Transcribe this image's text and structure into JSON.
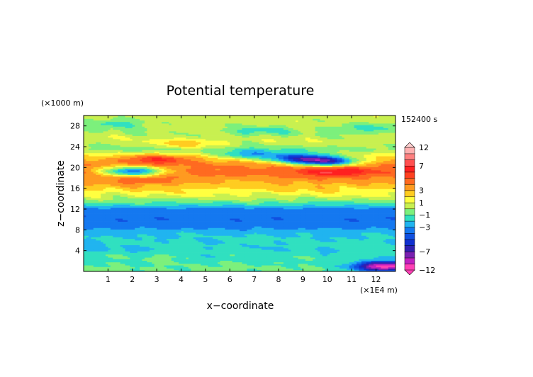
{
  "chart_data": {
    "type": "heatmap",
    "title": "Potential temperature",
    "xlabel": "x−coordinate",
    "ylabel": "z−coordinate",
    "x_unit": "(×1E4 m)",
    "y_unit": "(×1000 m)",
    "time_label": "152400 s",
    "xlim": [
      0,
      12.8
    ],
    "ylim": [
      0,
      30
    ],
    "x_ticks": [
      1,
      2,
      3,
      4,
      5,
      6,
      7,
      8,
      9,
      10,
      11,
      12
    ],
    "y_ticks": [
      4,
      8,
      12,
      16,
      20,
      24,
      28
    ],
    "colorbar": {
      "levels": [
        -12,
        -9,
        -8,
        -7,
        -6,
        -5,
        -4,
        -3,
        -2,
        -1,
        0,
        1,
        2,
        3,
        4,
        5,
        6,
        7,
        8,
        10,
        12
      ],
      "colors": [
        "#ff3fb5",
        "#c020c0",
        "#7a20b0",
        "#3020b0",
        "#1030d0",
        "#1050e0",
        "#1478f0",
        "#20b4f0",
        "#30e0c0",
        "#7cf07c",
        "#c8f050",
        "#ffff40",
        "#ffcc20",
        "#ff9a20",
        "#ff6a20",
        "#ff4020",
        "#ff2020",
        "#ff5050",
        "#ff8080",
        "#ffb0b0"
      ],
      "tick_labels": [
        "12",
        "7",
        "3",
        "1",
        "−1",
        "−3",
        "−7",
        "−12"
      ],
      "tick_values": [
        12,
        7,
        3,
        1,
        -1,
        -3,
        -7,
        -12
      ],
      "extend": "both"
    },
    "z_profile": [
      {
        "z": 0.5,
        "value": -0.8
      },
      {
        "z": 2,
        "value": -1.2
      },
      {
        "z": 4,
        "value": -1.7
      },
      {
        "z": 6,
        "value": -1.8
      },
      {
        "z": 7.5,
        "value": -2.2
      },
      {
        "z": 8.5,
        "value": -3.3
      },
      {
        "z": 10,
        "value": -3.8
      },
      {
        "z": 12,
        "value": -3.4
      },
      {
        "z": 13,
        "value": -1.4
      },
      {
        "z": 14.5,
        "value": 0.8
      },
      {
        "z": 16,
        "value": 2.2
      },
      {
        "z": 17.5,
        "value": 3.5
      },
      {
        "z": 19,
        "value": 4.5
      },
      {
        "z": 20.5,
        "value": 4.0
      },
      {
        "z": 22,
        "value": 2.5
      },
      {
        "z": 23.5,
        "value": -0.5
      },
      {
        "z": 25,
        "value": 0.6
      },
      {
        "z": 27,
        "value": 0.2
      },
      {
        "z": 29,
        "value": 0.5
      },
      {
        "z": 30,
        "value": 0.6
      }
    ],
    "features": [
      {
        "x": 2.0,
        "z": 19.3,
        "value": -3.5
      },
      {
        "x": 3.0,
        "z": 21.6,
        "value": 6.0
      },
      {
        "x": 2.3,
        "z": 17.5,
        "value": 5.0
      },
      {
        "x": 8.8,
        "z": 21.8,
        "value": -4.0
      },
      {
        "x": 10.0,
        "z": 21.2,
        "value": -5.0
      },
      {
        "x": 10.0,
        "z": 19.3,
        "value": 6.5
      },
      {
        "x": 11.0,
        "z": 19.4,
        "value": 5.5
      },
      {
        "x": 6.8,
        "z": 22.5,
        "value": -2.5
      },
      {
        "x": 6.5,
        "z": 17.5,
        "value": 3.0
      },
      {
        "x": 9.5,
        "z": 16.0,
        "value": 2.5
      },
      {
        "x": 4.3,
        "z": 24.6,
        "value": 2.5
      },
      {
        "x": 1.3,
        "z": 28.5,
        "value": -1.5
      },
      {
        "x": 7.2,
        "z": 27.0,
        "value": -1.5
      },
      {
        "x": 11.5,
        "z": 27.5,
        "value": -1.5
      },
      {
        "x": 12.4,
        "z": 1.0,
        "value": -10.0
      },
      {
        "x": 1.0,
        "z": 4.5,
        "value": -2.2
      },
      {
        "x": 3.0,
        "z": 3.0,
        "value": -1.0
      }
    ]
  }
}
